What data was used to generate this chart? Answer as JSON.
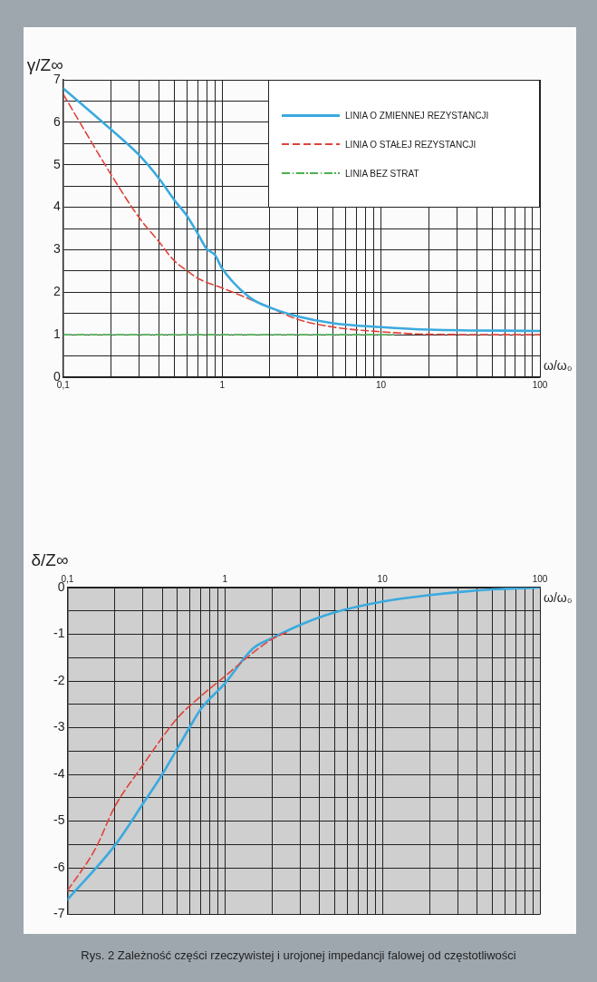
{
  "chart_data": [
    {
      "type": "line",
      "ylabel": "γ/Z∞",
      "xlabel": "ω/ω₀",
      "log": "x",
      "grid": true,
      "legend": "top right",
      "xlim": [
        0.1,
        100
      ],
      "ylim": [
        0,
        7
      ],
      "xticks": [
        {
          "value": 0.1,
          "label": "0,1"
        },
        {
          "value": 0.2,
          "label": null
        },
        {
          "value": 0.3,
          "label": null
        },
        {
          "value": 0.4,
          "label": null
        },
        {
          "value": 0.5,
          "label": null
        },
        {
          "value": 0.6,
          "label": null
        },
        {
          "value": 0.7,
          "label": null
        },
        {
          "value": 0.8,
          "label": null
        },
        {
          "value": 0.9,
          "label": null
        },
        1,
        {
          "value": 2,
          "label": null
        },
        {
          "value": 3,
          "label": null
        },
        {
          "value": 4,
          "label": null
        },
        {
          "value": 5,
          "label": null
        },
        {
          "value": 6,
          "label": null
        },
        {
          "value": 7,
          "label": null
        },
        {
          "value": 8,
          "label": null
        },
        {
          "value": 9,
          "label": null
        },
        10,
        {
          "value": 20,
          "label": null
        },
        {
          "value": 30,
          "label": null
        },
        {
          "value": 40,
          "label": null
        },
        {
          "value": 50,
          "label": null
        },
        {
          "value": 60,
          "label": null
        },
        {
          "value": 70,
          "label": null
        },
        {
          "value": 80,
          "label": null
        },
        {
          "value": 90,
          "label": null
        },
        100
      ],
      "yticks": [
        0,
        {
          "value": 0.5,
          "label": null
        },
        1,
        {
          "value": 1.5,
          "label": null
        },
        2,
        {
          "value": 2.5,
          "label": null
        },
        3,
        {
          "value": 3.5,
          "label": null
        },
        4,
        {
          "value": 4.5,
          "label": null
        },
        5,
        {
          "value": 5.5,
          "label": null
        },
        6,
        {
          "value": 6.5,
          "label": null
        },
        7
      ],
      "series": [
        {
          "name": "LINIA O ZMIENNEJ REZYSTANCJI",
          "color": "#3aaadf",
          "line_style": "solid",
          "x": [
            0.1,
            0.2,
            0.3,
            0.4,
            0.5,
            0.6,
            0.7,
            0.8,
            0.9,
            1,
            1.5,
            2,
            3,
            5,
            10,
            20,
            100
          ],
          "values": [
            6.8,
            5.83,
            5.23,
            4.68,
            4.17,
            3.8,
            3.39,
            3.02,
            2.88,
            2.56,
            1.87,
            1.64,
            1.43,
            1.27,
            1.18,
            1.12,
            1.09
          ]
        },
        {
          "name": "LINIA O STAŁEJ REZYSTANCJI",
          "color": "#e0433a",
          "line_style": "dashed",
          "x": [
            0.1,
            0.2,
            0.3,
            0.4,
            0.5,
            0.6,
            0.7,
            1,
            2,
            3,
            5,
            10,
            20,
            100
          ],
          "values": [
            6.66,
            4.77,
            3.76,
            3.19,
            2.74,
            2.51,
            2.33,
            2.1,
            1.64,
            1.36,
            1.18,
            1.07,
            1.01,
            1.0
          ]
        },
        {
          "name": "LINIA BEZ STRAT",
          "color": "#4caf50",
          "line_style": "dotted",
          "x": [
            0.1,
            12
          ],
          "values": [
            1,
            1
          ]
        }
      ]
    },
    {
      "type": "line",
      "ylabel": "δ/Z∞",
      "xlabel": "ω/ω₀",
      "log": "x",
      "grid": true,
      "xlim": [
        0.1,
        100
      ],
      "ylim": [
        -7,
        0
      ],
      "xticks": [
        {
          "value": 0.1,
          "label": "0,1"
        },
        {
          "value": 0.2,
          "label": null
        },
        {
          "value": 0.3,
          "label": null
        },
        {
          "value": 0.4,
          "label": null
        },
        {
          "value": 0.5,
          "label": null
        },
        {
          "value": 0.6,
          "label": null
        },
        {
          "value": 0.7,
          "label": null
        },
        {
          "value": 0.8,
          "label": null
        },
        {
          "value": 0.9,
          "label": null
        },
        1,
        {
          "value": 2,
          "label": null
        },
        {
          "value": 3,
          "label": null
        },
        {
          "value": 4,
          "label": null
        },
        {
          "value": 5,
          "label": null
        },
        {
          "value": 6,
          "label": null
        },
        {
          "value": 7,
          "label": null
        },
        {
          "value": 8,
          "label": null
        },
        {
          "value": 9,
          "label": null
        },
        10,
        {
          "value": 20,
          "label": null
        },
        {
          "value": 30,
          "label": null
        },
        {
          "value": 40,
          "label": null
        },
        {
          "value": 50,
          "label": null
        },
        {
          "value": 60,
          "label": null
        },
        {
          "value": 70,
          "label": null
        },
        {
          "value": 80,
          "label": null
        },
        {
          "value": 90,
          "label": null
        },
        100
      ],
      "yticks": [
        -7,
        {
          "value": -6.5,
          "label": null
        },
        -6,
        {
          "value": -5.5,
          "label": null
        },
        -5,
        {
          "value": -4.5,
          "label": null
        },
        -4,
        {
          "value": -3.5,
          "label": null
        },
        -3,
        {
          "value": -2.5,
          "label": null
        },
        -2,
        {
          "value": -1.5,
          "label": null
        },
        -1,
        {
          "value": -0.5,
          "label": null
        },
        0
      ],
      "annotations": [
        "Rys. 2 Zależność części rzeczywistej i urojonej impedancji falowej od częstotliwości"
      ],
      "series": [
        {
          "color": "#e0433a",
          "line_style": "dashed",
          "x": [
            0.1,
            0.15,
            0.2,
            0.3,
            0.4,
            0.5,
            0.7,
            1,
            1.5,
            2,
            2.5
          ],
          "values": [
            -6.49,
            -5.6,
            -4.69,
            -3.81,
            -3.21,
            -2.79,
            -2.33,
            -1.9,
            -1.4,
            -1.1,
            -0.95
          ]
        },
        {
          "color": "#3aaadf",
          "line_style": "solid",
          "x": [
            0.1,
            0.2,
            0.3,
            0.4,
            0.5,
            0.6,
            0.7,
            1,
            1.5,
            2,
            3,
            5,
            10,
            20,
            50,
            100
          ],
          "values": [
            -6.68,
            -5.52,
            -4.64,
            -4.0,
            -3.44,
            -2.98,
            -2.61,
            -2.05,
            -1.31,
            -1.08,
            -0.8,
            -0.53,
            -0.3,
            -0.16,
            -0.04,
            0
          ]
        }
      ]
    }
  ]
}
